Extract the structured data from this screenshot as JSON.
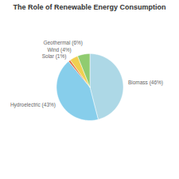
{
  "chart_data": {
    "type": "pie",
    "title": "The Role of Renewable Energy Consumption",
    "categories": [
      "Biomass (46%)",
      "Hydroelectric (43%)",
      "Solar (1%)",
      "Wind (4%)",
      "Geothermal (6%)"
    ],
    "values": [
      46,
      43,
      1,
      4,
      6
    ],
    "colors": [
      "#ADD8E6",
      "#87CEEB",
      "#E07040",
      "#F0D050",
      "#90CC70"
    ]
  }
}
